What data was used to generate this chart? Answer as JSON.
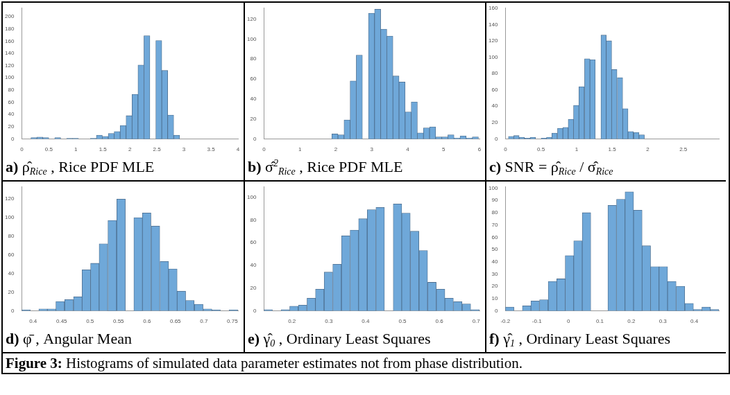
{
  "chart_data": [
    {
      "type": "histogram",
      "title": "a)  ρ̂$_{Rice}$ , Rice PDF MLE",
      "color": "#6fa8d9",
      "bins": [
        0.17,
        0.28,
        0.39,
        0.5,
        0.61,
        0.72,
        0.83,
        0.94,
        1.05,
        1.16,
        1.27,
        1.38,
        1.49,
        1.6,
        1.71,
        1.82,
        1.93,
        2.04,
        2.15,
        2.26,
        2.37,
        2.48,
        2.59,
        2.7,
        2.81,
        2.92
      ],
      "values": [
        2,
        3,
        2,
        0,
        2,
        0,
        1,
        1,
        0,
        0,
        1,
        6,
        4,
        9,
        12,
        22,
        38,
        73,
        121,
        169,
        null,
        161,
        112,
        39,
        6
      ],
      "xlim": [
        0,
        4
      ],
      "xticks": [
        0,
        0.5,
        1,
        1.5,
        2,
        2.5,
        3,
        3.5,
        4
      ],
      "ylim": [
        0,
        214
      ],
      "yticks": [
        0,
        20,
        40,
        60,
        80,
        100,
        120,
        140,
        160,
        180,
        200
      ],
      "annotations": [
        "Figure 3: Histograms of simulated data parameter estimates not from phase distribution."
      ]
    },
    {
      "type": "histogram",
      "title": "b)  σ̂$^{2}$$_{Rice}$ , Rice PDF MLE",
      "color": "#6fa8d9",
      "bins": [
        1.89,
        2.06,
        2.23,
        2.4,
        2.57,
        2.74,
        2.91,
        3.08,
        3.25,
        3.42,
        3.59,
        3.76,
        3.93,
        4.1,
        4.27,
        4.44,
        4.61,
        4.78,
        4.95,
        5.12,
        5.29,
        5.46,
        5.63,
        5.8,
        5.97
      ],
      "values": [
        5,
        4,
        19,
        58,
        84,
        null,
        126,
        130,
        110,
        103,
        63,
        57,
        27,
        37,
        6,
        11,
        12,
        2,
        2,
        4,
        1,
        3,
        1,
        2
      ],
      "xlim": [
        0,
        6
      ],
      "xticks": [
        0,
        1,
        2,
        3,
        4,
        5,
        6
      ],
      "ylim": [
        0,
        131
      ],
      "yticks": [
        0,
        20,
        40,
        60,
        80,
        100,
        120
      ]
    },
    {
      "type": "histogram",
      "title": "c)  SNR = ρ̂$_{Rice}$ / σ̂$_{Rice}$",
      "color": "#6fa8d9",
      "bins": [
        0.04,
        0.12,
        0.19,
        0.27,
        0.35,
        0.42,
        0.5,
        0.58,
        0.65,
        0.73,
        0.81,
        0.88,
        0.96,
        1.03,
        1.11,
        1.19,
        1.26,
        1.34,
        1.42,
        1.49,
        1.57,
        1.65,
        1.72,
        1.8,
        1.88,
        1.95
      ],
      "values": [
        3,
        4,
        2,
        1,
        2,
        0,
        1,
        2,
        7,
        13,
        14,
        24,
        41,
        64,
        98,
        97,
        null,
        127,
        120,
        85,
        75,
        37,
        9,
        8,
        5
      ],
      "xlim": [
        0,
        3
      ],
      "xticks": [
        0,
        0.5,
        1,
        1.5,
        2,
        2.5
      ],
      "ylim": [
        0,
        160
      ],
      "yticks": [
        0,
        20,
        40,
        60,
        80,
        100,
        120,
        140,
        160
      ]
    },
    {
      "type": "histogram",
      "title": "d)  φ̄ , Angular Mean",
      "color": "#6fa8d9",
      "bins": [
        0.38,
        0.395,
        0.41,
        0.425,
        0.44,
        0.455,
        0.471,
        0.486,
        0.501,
        0.516,
        0.531,
        0.547,
        0.562,
        0.577,
        0.592,
        0.607,
        0.623,
        0.638,
        0.653,
        0.668,
        0.683,
        0.699,
        0.714,
        0.729,
        0.744,
        0.76
      ],
      "values": [
        1,
        0,
        2,
        2,
        10,
        12,
        15,
        44,
        51,
        72,
        97,
        120,
        null,
        100,
        105,
        91,
        53,
        45,
        21,
        11,
        7,
        2,
        1,
        0,
        1
      ],
      "xlim": [
        0.38,
        0.76
      ],
      "xticks": [
        0.4,
        0.45,
        0.5,
        0.55,
        0.6,
        0.65,
        0.7,
        0.75
      ],
      "ylim": [
        0,
        133
      ],
      "yticks": [
        0,
        20,
        40,
        60,
        80,
        100,
        120
      ]
    },
    {
      "type": "histogram",
      "title": "e)  γ̂$_{0}$ , Ordinary Least Squares",
      "color": "#6fa8d9",
      "bins": [
        0.124,
        0.147,
        0.17,
        0.194,
        0.217,
        0.241,
        0.264,
        0.287,
        0.311,
        0.334,
        0.358,
        0.381,
        0.404,
        0.428,
        0.451,
        0.475,
        0.498,
        0.521,
        0.545,
        0.568,
        0.592,
        0.615,
        0.638,
        0.662,
        0.685,
        0.709
      ],
      "values": [
        1,
        0,
        1,
        4,
        5,
        11,
        19,
        34,
        41,
        66,
        71,
        81,
        89,
        91,
        null,
        94,
        86,
        70,
        53,
        25,
        19,
        11,
        8,
        6,
        1
      ],
      "xlim": [
        0.124,
        0.709
      ],
      "xticks": [
        0.2,
        0.3,
        0.4,
        0.5,
        0.6,
        0.7
      ],
      "ylim": [
        0,
        109
      ],
      "yticks": [
        0,
        20,
        40,
        60,
        80,
        100
      ]
    },
    {
      "type": "histogram",
      "title": "f)  γ̂$_{1}$ , Ordinary Least Squares",
      "color": "#6fa8d9",
      "bins": [
        -0.2,
        -0.173,
        -0.146,
        -0.119,
        -0.092,
        -0.064,
        -0.037,
        -0.01,
        0.017,
        0.044,
        0.071,
        0.098,
        0.125,
        0.153,
        0.18,
        0.207,
        0.234,
        0.261,
        0.288,
        0.315,
        0.342,
        0.37,
        0.397,
        0.424,
        0.451,
        0.478
      ],
      "values": [
        3,
        0,
        4,
        8,
        9,
        24,
        26,
        45,
        57,
        80,
        null,
        null,
        86,
        91,
        97,
        82,
        53,
        36,
        36,
        24,
        20,
        6,
        1,
        3,
        1
      ],
      "xlim": [
        -0.2,
        0.478
      ],
      "xticks": [
        -0.2,
        -0.1,
        0,
        0.1,
        0.2,
        0.3,
        0.4
      ],
      "ylim": [
        0,
        101
      ],
      "yticks": [
        0,
        10,
        20,
        30,
        40,
        50,
        60,
        70,
        80,
        90,
        100
      ]
    }
  ]
}
